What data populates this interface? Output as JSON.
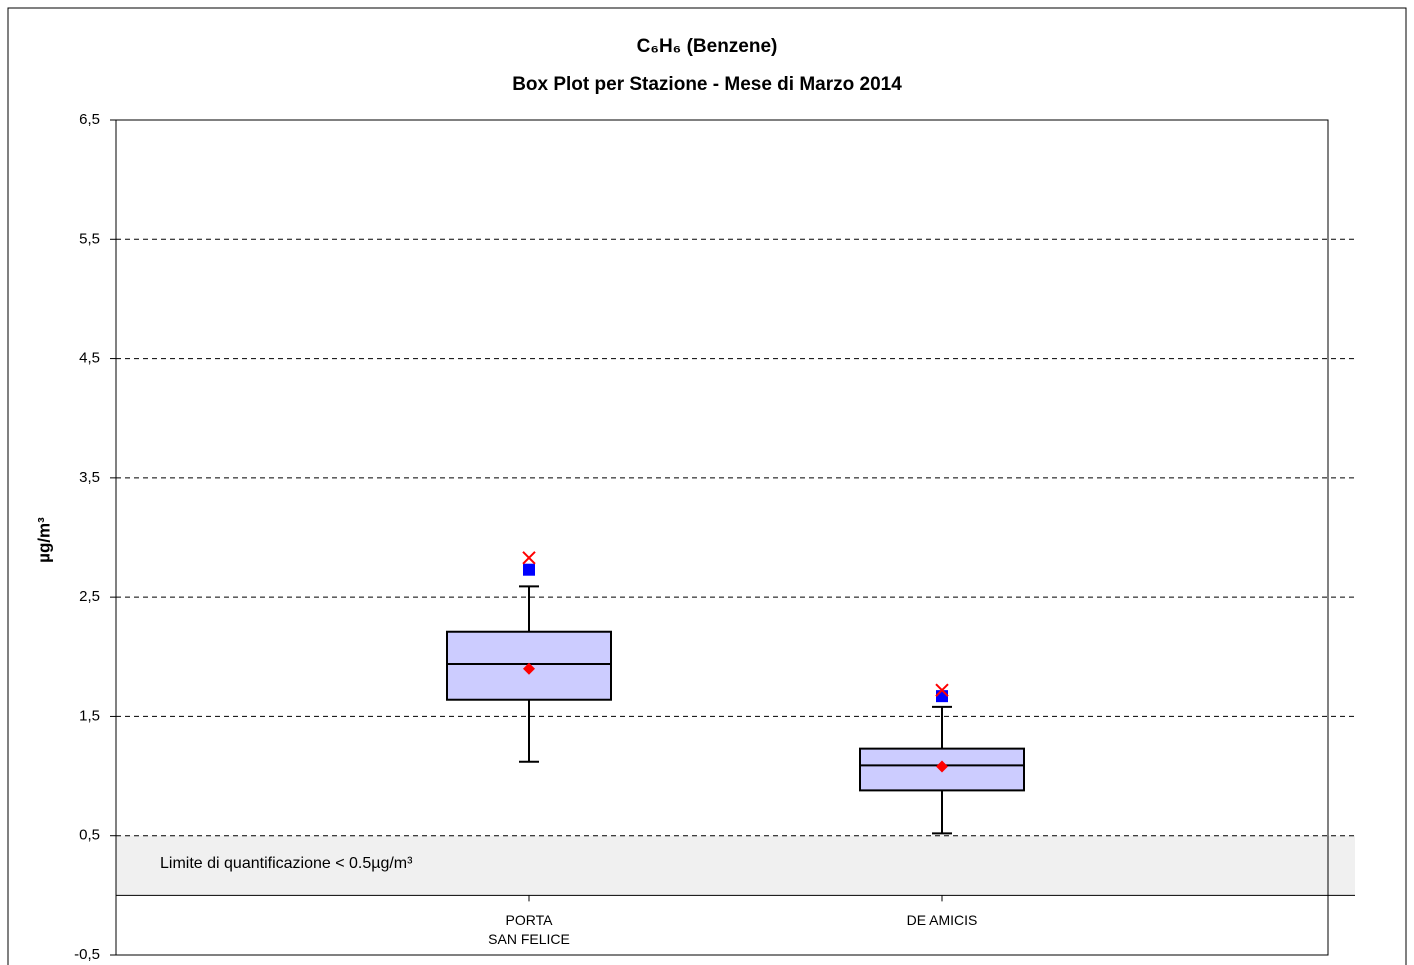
{
  "chart_data": {
    "type": "box",
    "title": "C₆H₆ (Benzene)",
    "subtitle": "Box Plot per Stazione - Mese di Marzo 2014",
    "y_label": "µg/m³",
    "annotation": "Limite di quantificazione < 0.5µg/m³",
    "categories": [
      "PORTA\nSAN FELICE",
      "DE AMICIS"
    ],
    "boxes": [
      {
        "whislo": 1.12,
        "q1": 1.64,
        "med": 1.94,
        "q3": 2.21,
        "whishi": 2.59,
        "mean": 1.9,
        "marker_square": 2.73,
        "marker_x": 2.83
      },
      {
        "whislo": 0.52,
        "q1": 0.88,
        "med": 1.09,
        "q3": 1.23,
        "whishi": 1.58,
        "mean": 1.08,
        "marker_square": 1.67,
        "marker_x": 1.72
      }
    ],
    "box_color": "#ccccff",
    "mean_color": "#ff0000",
    "square_color": "#0000ff",
    "x_color": "#ff0000",
    "lod_band": [
      0,
      0.5
    ],
    "lod_color": "#f0f0f0",
    "ylim": [
      -0.5,
      6.5
    ],
    "yticks": [
      {
        "value": -0.5,
        "label": "-0,5"
      },
      {
        "value": 0.5,
        "label": "0,5"
      },
      {
        "value": 1.5,
        "label": "1,5"
      },
      {
        "value": 2.5,
        "label": "2,5"
      },
      {
        "value": 3.5,
        "label": "3,5"
      },
      {
        "value": 4.5,
        "label": "4,5"
      },
      {
        "value": 5.5,
        "label": "5,5"
      },
      {
        "value": 6.5,
        "label": "6,5"
      }
    ],
    "grid": true
  }
}
